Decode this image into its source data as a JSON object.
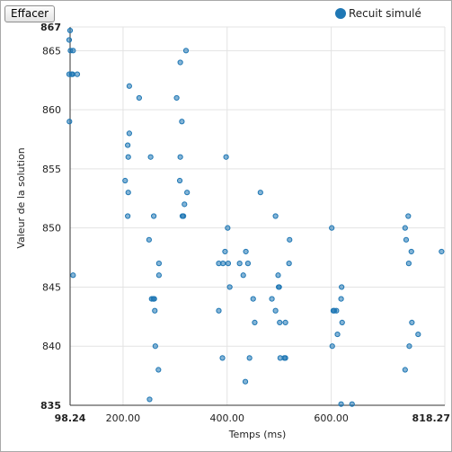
{
  "toolbar": {
    "clear_label": "Effacer"
  },
  "legend": {
    "label": "Recuit simulé",
    "color": "#1f77b4"
  },
  "chart_data": {
    "type": "scatter",
    "title": "",
    "xlabel": "Temps (ms)",
    "ylabel": "Valeur de la solution",
    "xlim": [
      98.24,
      818.27
    ],
    "ylim": [
      835,
      867
    ],
    "x_ticks": [
      {
        "value": 98.24,
        "label": "98.24",
        "bold": true
      },
      {
        "value": 200,
        "label": "200.00",
        "bold": false
      },
      {
        "value": 400,
        "label": "400.00",
        "bold": false
      },
      {
        "value": 600,
        "label": "600.00",
        "bold": false
      },
      {
        "value": 818.27,
        "label": "818.27",
        "bold": true
      }
    ],
    "y_ticks": [
      {
        "value": 835,
        "label": "835",
        "bold": true
      },
      {
        "value": 840,
        "label": "840",
        "bold": false
      },
      {
        "value": 845,
        "label": "845",
        "bold": false
      },
      {
        "value": 850,
        "label": "850",
        "bold": false
      },
      {
        "value": 855,
        "label": "855",
        "bold": false
      },
      {
        "value": 860,
        "label": "860",
        "bold": false
      },
      {
        "value": 865,
        "label": "865",
        "bold": false
      },
      {
        "value": 867,
        "label": "867",
        "bold": true
      }
    ],
    "grid": true,
    "legend_position": "top-right",
    "series": [
      {
        "name": "Recuit simulé",
        "color": "#1f77b4",
        "points": [
          [
            98.24,
            866.7
          ],
          [
            96.5,
            865.9
          ],
          [
            99,
            865
          ],
          [
            104,
            865
          ],
          [
            96.5,
            863
          ],
          [
            101,
            863
          ],
          [
            103,
            863
          ],
          [
            112,
            863
          ],
          [
            97,
            859
          ],
          [
            104,
            846
          ],
          [
            212,
            862
          ],
          [
            231,
            861
          ],
          [
            212,
            858
          ],
          [
            209,
            857
          ],
          [
            210,
            856
          ],
          [
            253,
            856
          ],
          [
            204,
            854
          ],
          [
            210,
            853
          ],
          [
            209,
            851
          ],
          [
            259,
            851
          ],
          [
            250,
            849
          ],
          [
            269,
            847
          ],
          [
            269,
            846
          ],
          [
            255,
            844
          ],
          [
            258,
            844
          ],
          [
            260,
            844
          ],
          [
            261,
            843
          ],
          [
            262,
            840
          ],
          [
            268,
            838
          ],
          [
            251,
            835.5
          ],
          [
            303,
            861
          ],
          [
            310,
            864
          ],
          [
            321,
            865
          ],
          [
            313,
            859
          ],
          [
            310,
            856
          ],
          [
            309,
            854
          ],
          [
            323,
            853
          ],
          [
            318,
            852
          ],
          [
            314,
            851
          ],
          [
            316,
            851
          ],
          [
            398,
            856
          ],
          [
            384,
            847
          ],
          [
            392,
            847
          ],
          [
            396,
            848
          ],
          [
            402,
            847
          ],
          [
            401,
            850
          ],
          [
            405,
            845
          ],
          [
            384,
            843
          ],
          [
            391,
            839
          ],
          [
            435,
            837
          ],
          [
            464,
            853
          ],
          [
            424,
            847
          ],
          [
            436,
            848
          ],
          [
            440,
            847
          ],
          [
            431,
            846
          ],
          [
            450,
            844
          ],
          [
            453,
            842
          ],
          [
            443,
            839
          ],
          [
            493,
            851
          ],
          [
            520,
            849
          ],
          [
            519,
            847
          ],
          [
            498,
            846
          ],
          [
            499,
            845
          ],
          [
            500,
            845
          ],
          [
            486,
            844
          ],
          [
            493,
            843
          ],
          [
            501,
            842
          ],
          [
            512,
            842
          ],
          [
            502,
            839
          ],
          [
            510,
            839
          ],
          [
            512,
            839
          ],
          [
            601,
            850
          ],
          [
            604,
            843
          ],
          [
            606,
            843
          ],
          [
            610,
            843
          ],
          [
            620,
            845
          ],
          [
            619,
            844
          ],
          [
            621,
            842
          ],
          [
            612,
            841
          ],
          [
            602,
            840
          ],
          [
            619,
            835.1
          ],
          [
            640,
            835.1
          ],
          [
            748,
            851
          ],
          [
            742,
            850
          ],
          [
            744,
            849
          ],
          [
            754,
            848
          ],
          [
            749,
            847
          ],
          [
            742,
            838
          ],
          [
            750,
            840
          ],
          [
            755,
            842
          ],
          [
            767,
            841
          ],
          [
            812,
            848
          ]
        ]
      }
    ]
  }
}
